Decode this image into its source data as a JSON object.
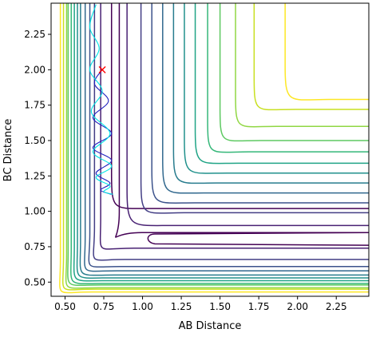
{
  "chart_data": {
    "type": "contour",
    "title": "",
    "xlabel": "AB Distance",
    "ylabel": "BC Distance",
    "xlim": [
      0.41,
      2.46
    ],
    "ylim": [
      0.4,
      2.47
    ],
    "x_ticks": [
      0.5,
      0.75,
      1.0,
      1.25,
      1.5,
      1.75,
      2.0,
      2.25
    ],
    "x_tick_labels": [
      "0.50",
      "0.75",
      "1.00",
      "1.25",
      "1.50",
      "1.75",
      "2.00",
      "2.25"
    ],
    "y_ticks": [
      0.5,
      0.75,
      1.0,
      1.25,
      1.5,
      1.75,
      2.0,
      2.25
    ],
    "y_tick_labels": [
      "0.50",
      "0.75",
      "1.00",
      "1.25",
      "1.50",
      "1.75",
      "2.00",
      "2.25"
    ],
    "colormap": "viridis",
    "contour_levels": [
      {
        "color": "#440154",
        "x_asym": 0.85,
        "y_asym": 0.85,
        "corner_x": 0.79,
        "corner_y": 0.77
      },
      {
        "color": "#482173",
        "x_asym": 0.73,
        "y_asym": 0.74,
        "corner_x": 0.74,
        "corner_y": 0.73
      },
      {
        "color": "#433e85",
        "x_asym": 0.69,
        "y_asym": 0.66,
        "corner_x": 0.68,
        "corner_y": 0.66
      },
      {
        "color": "#3b528b",
        "x_asym": 0.66,
        "y_asym": 0.61,
        "corner_x": 0.65,
        "corner_y": 0.62
      },
      {
        "color": "#31688e",
        "x_asym": 0.63,
        "y_asym": 0.58,
        "corner_x": 0.63,
        "corner_y": 0.59
      },
      {
        "color": "#287c8e",
        "x_asym": 0.6,
        "y_asym": 0.55,
        "corner_x": 0.61,
        "corner_y": 0.57
      },
      {
        "color": "#21918c",
        "x_asym": 0.58,
        "y_asym": 0.53,
        "corner_x": 0.59,
        "corner_y": 0.55
      },
      {
        "color": "#20a486",
        "x_asym": 0.56,
        "y_asym": 0.51,
        "corner_x": 0.57,
        "corner_y": 0.53
      },
      {
        "color": "#35b779",
        "x_asym": 0.54,
        "y_asym": 0.49,
        "corner_x": 0.55,
        "corner_y": 0.51
      },
      {
        "color": "#5ec962",
        "x_asym": 0.52,
        "y_asym": 0.48,
        "corner_x": 0.53,
        "corner_y": 0.49
      },
      {
        "color": "#90d743",
        "x_asym": 0.51,
        "y_asym": 0.46,
        "corner_x": 0.51,
        "corner_y": 0.47
      },
      {
        "color": "#c8e020",
        "x_asym": 0.49,
        "y_asym": 0.45,
        "corner_x": 0.49,
        "corner_y": 0.45
      },
      {
        "color": "#fde725",
        "x_asym": 0.47,
        "y_asym": 0.43,
        "corner_x": 0.47,
        "corner_y": 0.43
      }
    ],
    "outer_contours": [
      {
        "color": "#440154",
        "x_asym": 0.8,
        "y_asym": 1.02,
        "corner_x": 0.86,
        "corner_y": 1.05
      },
      {
        "color": "#482173",
        "x_asym": 0.9,
        "y_asym": 0.9,
        "corner_x": 0.98,
        "corner_y": 0.93
      },
      {
        "color": "#433e85",
        "x_asym": 0.99,
        "y_asym": 0.99,
        "corner_x": 1.06,
        "corner_y": 1.0
      },
      {
        "color": "#3b528b",
        "x_asym": 1.06,
        "y_asym": 1.06,
        "corner_x": 1.13,
        "corner_y": 1.08
      },
      {
        "color": "#31688e",
        "x_asym": 1.13,
        "y_asym": 1.13,
        "corner_x": 1.2,
        "corner_y": 1.15
      },
      {
        "color": "#287c8e",
        "x_asym": 1.2,
        "y_asym": 1.2,
        "corner_x": 1.27,
        "corner_y": 1.22
      },
      {
        "color": "#21918c",
        "x_asym": 1.27,
        "y_asym": 1.27,
        "corner_x": 1.34,
        "corner_y": 1.29
      },
      {
        "color": "#20a486",
        "x_asym": 1.34,
        "y_asym": 1.34,
        "corner_x": 1.41,
        "corner_y": 1.36
      },
      {
        "color": "#35b779",
        "x_asym": 1.42,
        "y_asym": 1.42,
        "corner_x": 1.48,
        "corner_y": 1.43
      },
      {
        "color": "#5ec962",
        "x_asym": 1.5,
        "y_asym": 1.5,
        "corner_x": 1.56,
        "corner_y": 1.51
      },
      {
        "color": "#90d743",
        "x_asym": 1.6,
        "y_asym": 1.6,
        "corner_x": 1.66,
        "corner_y": 1.61
      },
      {
        "color": "#c8e020",
        "x_asym": 1.72,
        "y_asym": 1.72,
        "corner_x": 1.78,
        "corner_y": 1.73
      },
      {
        "color": "#fde725",
        "x_asym": 1.92,
        "y_asym": 1.79,
        "corner_x": 2.0,
        "corner_y": 1.8
      }
    ],
    "channel_contour": {
      "color": "#440154",
      "x": [
        2.46,
        1.05,
        1.03,
        1.06,
        2.46
      ],
      "y": [
        0.85,
        0.84,
        0.8,
        0.77,
        0.76
      ]
    },
    "trajectories": [
      {
        "color": "#1f1fbf",
        "x": [
          0.74,
          0.69,
          0.78,
          0.68,
          0.8,
          0.68,
          0.8,
          0.7,
          0.79,
          0.73,
          0.8
        ],
        "y": [
          2.0,
          1.9,
          1.78,
          1.66,
          1.55,
          1.45,
          1.36,
          1.27,
          1.2,
          1.15,
          1.12
        ]
      },
      {
        "color": "#00e5e5",
        "x": [
          0.7,
          0.66,
          0.72,
          0.66,
          0.74,
          0.67,
          0.79,
          0.68,
          0.8,
          0.7,
          0.79,
          0.75,
          0.81
        ],
        "y": [
          2.46,
          2.3,
          2.15,
          2.0,
          1.85,
          1.7,
          1.55,
          1.42,
          1.32,
          1.24,
          1.18,
          1.14,
          1.12
        ]
      }
    ],
    "marker": {
      "x": 0.74,
      "y": 2.0,
      "symbol": "x",
      "color": "#ff0000"
    }
  }
}
